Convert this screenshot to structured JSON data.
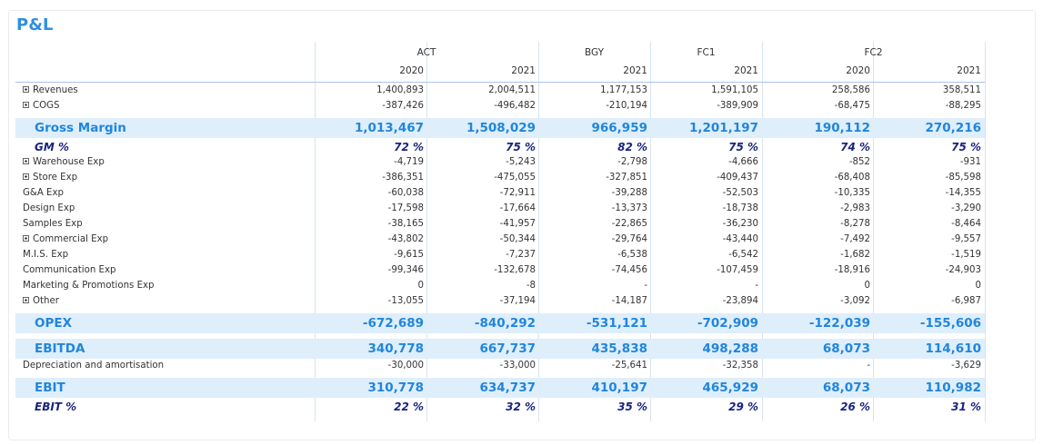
{
  "title": "P&L",
  "columns": {
    "groups": [
      {
        "label": "ACT"
      },
      {
        "label": "BGY"
      },
      {
        "label": "FC1"
      },
      {
        "label": "FC2"
      }
    ],
    "years": [
      "2020",
      "2021",
      "2021",
      "2021",
      "2020",
      "2021"
    ]
  },
  "rows": [
    {
      "type": "norm",
      "label": "Revenues",
      "expand": true,
      "values": [
        "1,400,893",
        "2,004,511",
        "1,177,153",
        "1,591,105",
        "258,586",
        "358,511"
      ]
    },
    {
      "type": "norm",
      "label": "COGS",
      "expand": true,
      "values": [
        "-387,426",
        "-496,482",
        "-210,194",
        "-389,909",
        "-68,475",
        "-88,295"
      ]
    },
    {
      "type": "big",
      "label": "Gross Margin",
      "values": [
        "1,013,467",
        "1,508,029",
        "966,959",
        "1,201,197",
        "190,112",
        "270,216"
      ]
    },
    {
      "type": "pct",
      "label": "GM %",
      "values": [
        "72 %",
        "75 %",
        "82 %",
        "75 %",
        "74 %",
        "75 %"
      ]
    },
    {
      "type": "norm",
      "label": "Warehouse Exp",
      "expand": true,
      "values": [
        "-4,719",
        "-5,243",
        "-2,798",
        "-4,666",
        "-852",
        "-931"
      ]
    },
    {
      "type": "norm",
      "label": "Store Exp",
      "expand": true,
      "values": [
        "-386,351",
        "-475,055",
        "-327,851",
        "-409,437",
        "-68,408",
        "-85,598"
      ]
    },
    {
      "type": "norm",
      "label": "G&A Exp",
      "values": [
        "-60,038",
        "-72,911",
        "-39,288",
        "-52,503",
        "-10,335",
        "-14,355"
      ]
    },
    {
      "type": "norm",
      "label": "Design Exp",
      "values": [
        "-17,598",
        "-17,664",
        "-13,373",
        "-18,738",
        "-2,983",
        "-3,290"
      ]
    },
    {
      "type": "norm",
      "label": "Samples Exp",
      "values": [
        "-38,165",
        "-41,957",
        "-22,865",
        "-36,230",
        "-8,278",
        "-8,464"
      ]
    },
    {
      "type": "norm",
      "label": "Commercial Exp",
      "expand": true,
      "values": [
        "-43,802",
        "-50,344",
        "-29,764",
        "-43,440",
        "-7,492",
        "-9,557"
      ]
    },
    {
      "type": "norm",
      "label": "M.I.S. Exp",
      "values": [
        "-9,615",
        "-7,237",
        "-6,538",
        "-6,542",
        "-1,682",
        "-1,519"
      ]
    },
    {
      "type": "norm",
      "label": "Communication Exp",
      "values": [
        "-99,346",
        "-132,678",
        "-74,456",
        "-107,459",
        "-18,916",
        "-24,903"
      ]
    },
    {
      "type": "norm",
      "label": "Marketing & Promotions Exp",
      "values": [
        "0",
        "-8",
        "-",
        "-",
        "0",
        "0"
      ]
    },
    {
      "type": "norm",
      "label": "Other",
      "expand": true,
      "values": [
        "-13,055",
        "-37,194",
        "-14,187",
        "-23,894",
        "-3,092",
        "-6,987"
      ]
    },
    {
      "type": "big",
      "label": "OPEX",
      "values": [
        "-672,689",
        "-840,292",
        "-531,121",
        "-702,909",
        "-122,039",
        "-155,606"
      ]
    },
    {
      "type": "big",
      "label": "EBITDA",
      "values": [
        "340,778",
        "667,737",
        "435,838",
        "498,288",
        "68,073",
        "114,610"
      ]
    },
    {
      "type": "norm",
      "label": "Depreciation and amortisation",
      "values": [
        "-30,000",
        "-33,000",
        "-25,641",
        "-32,358",
        "-",
        "-3,629"
      ]
    },
    {
      "type": "big",
      "label": "EBIT",
      "values": [
        "310,778",
        "634,737",
        "410,197",
        "465,929",
        "68,073",
        "110,982"
      ]
    },
    {
      "type": "pct",
      "label": "EBIT %",
      "values": [
        "22 %",
        "32 %",
        "35 %",
        "29 %",
        "26 %",
        "31 %"
      ]
    }
  ]
}
